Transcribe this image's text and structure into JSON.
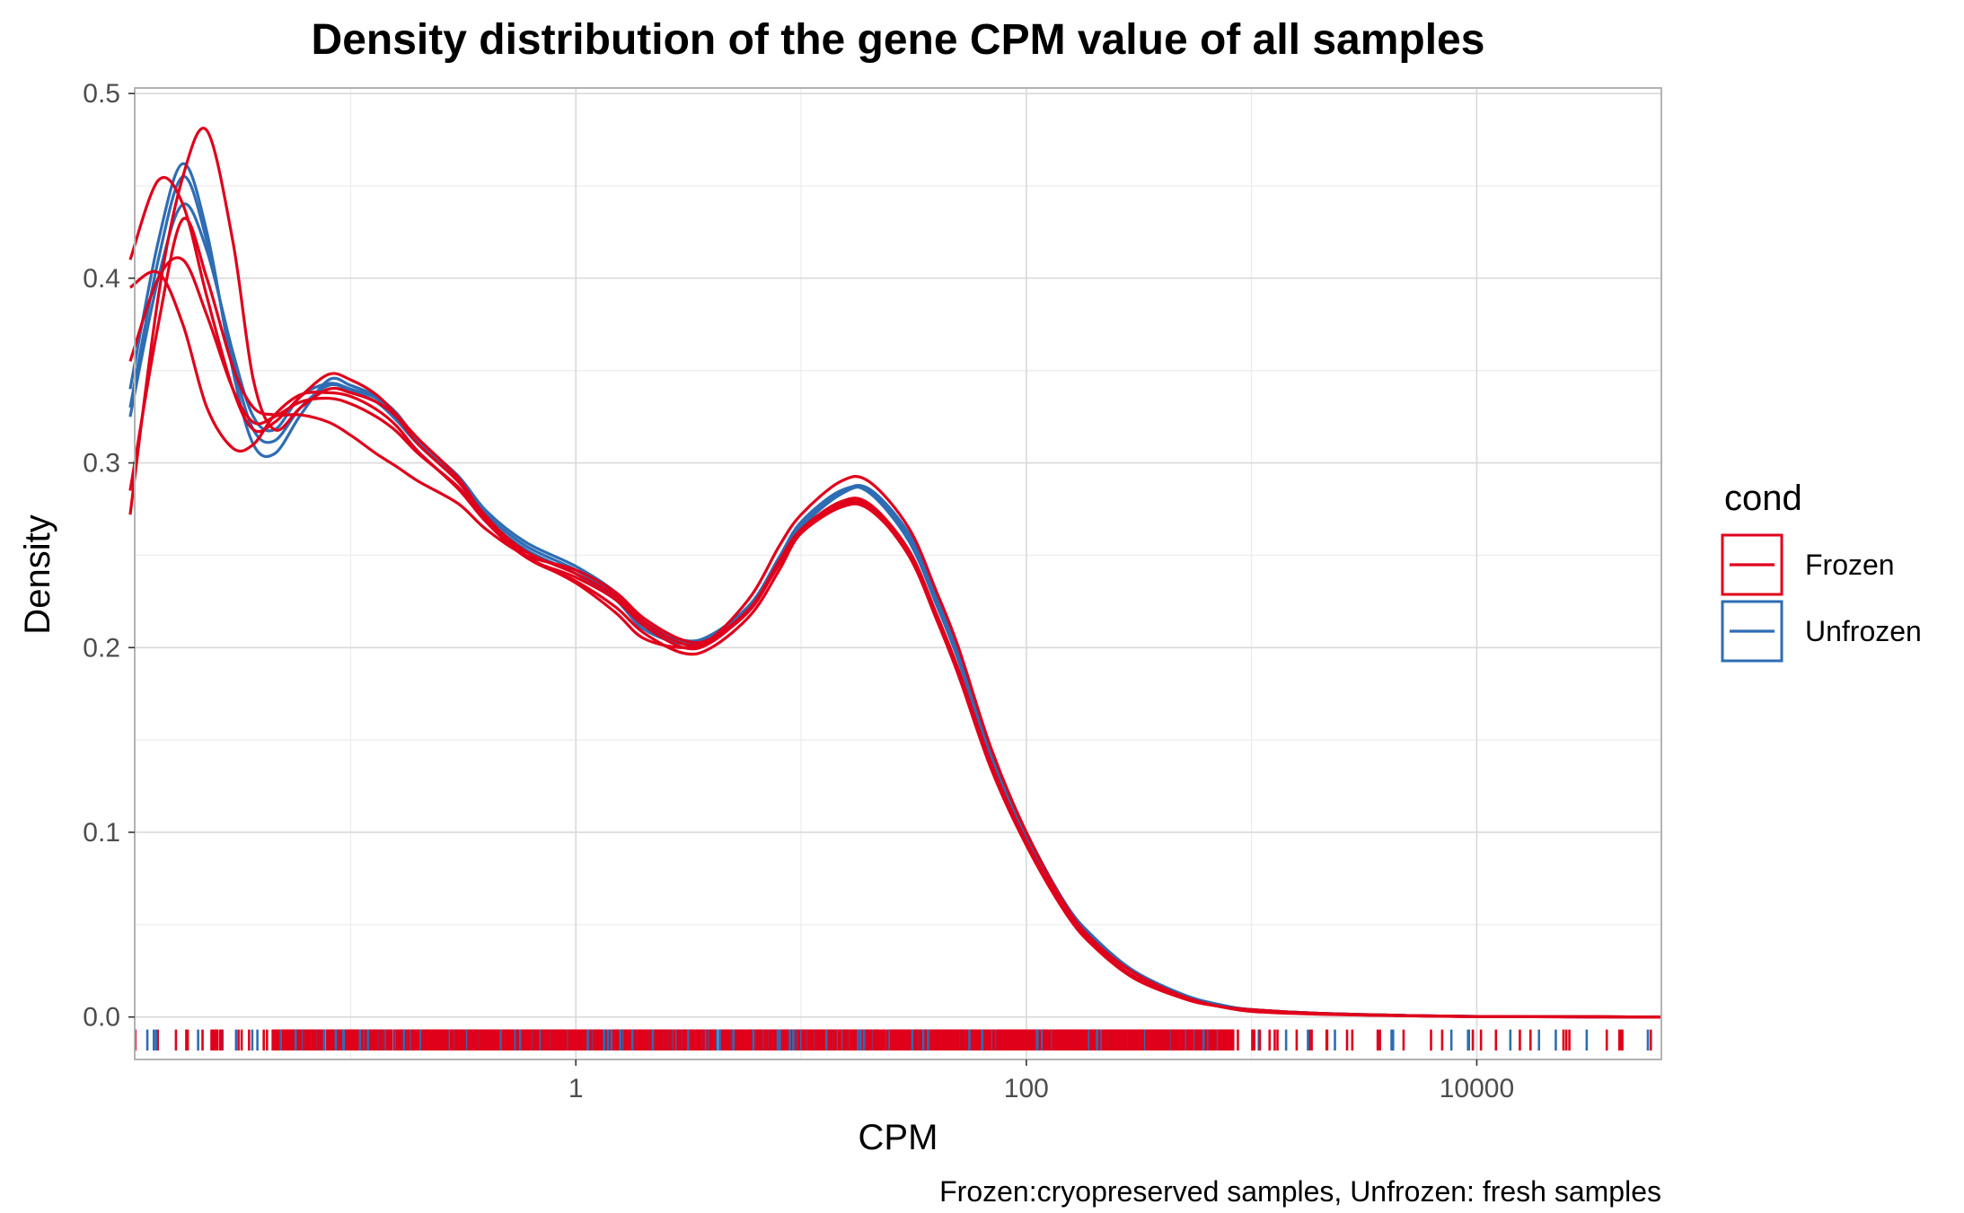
{
  "chart_data": {
    "type": "line",
    "title": "Density distribution of the gene CPM value of all samples",
    "xlabel": "CPM",
    "ylabel": "Density",
    "caption": "Frozen:cryopreserved samples, Unfrozen: fresh samples",
    "x_scale": "log10",
    "xlim": [
      0.011,
      66000
    ],
    "ylim": [
      -0.023,
      0.503
    ],
    "x_ticks": [
      {
        "value": 1,
        "label": "1"
      },
      {
        "value": 100,
        "label": "100"
      },
      {
        "value": 10000,
        "label": "10000"
      }
    ],
    "y_ticks": [
      {
        "value": 0.0,
        "label": "0.0"
      },
      {
        "value": 0.1,
        "label": "0.1"
      },
      {
        "value": 0.2,
        "label": "0.2"
      },
      {
        "value": 0.3,
        "label": "0.3"
      },
      {
        "value": 0.4,
        "label": "0.4"
      },
      {
        "value": 0.5,
        "label": "0.5"
      }
    ],
    "grid": true,
    "legend": {
      "title": "cond",
      "position": "right",
      "entries": [
        {
          "label": "Frozen",
          "color": "#e0001b"
        },
        {
          "label": "Unfrozen",
          "color": "#2e6db4"
        }
      ]
    },
    "series": [
      {
        "group": "Unfrozen",
        "color": "#2e6db4",
        "x": [
          0.0105,
          0.014,
          0.018,
          0.023,
          0.03,
          0.037,
          0.046,
          0.06,
          0.08,
          0.1,
          0.13,
          0.16,
          0.2,
          0.3,
          0.4,
          0.6,
          1,
          1.5,
          2,
          3,
          4,
          6,
          8,
          10,
          15,
          20,
          30,
          40,
          50,
          70,
          100,
          150,
          200,
          300,
          500,
          700,
          1000,
          2000,
          5000,
          10000,
          30000,
          66000
        ],
        "y": [
          0.325,
          0.4,
          0.44,
          0.415,
          0.36,
          0.325,
          0.318,
          0.336,
          0.343,
          0.34,
          0.335,
          0.325,
          0.31,
          0.29,
          0.27,
          0.253,
          0.24,
          0.226,
          0.21,
          0.202,
          0.205,
          0.222,
          0.246,
          0.265,
          0.283,
          0.285,
          0.26,
          0.225,
          0.195,
          0.142,
          0.098,
          0.06,
          0.042,
          0.024,
          0.012,
          0.007,
          0.004,
          0.002,
          0.0008,
          0.0003,
          0.0001,
          0
        ]
      },
      {
        "group": "Unfrozen",
        "color": "#2e6db4",
        "x": [
          0.0105,
          0.014,
          0.018,
          0.023,
          0.03,
          0.037,
          0.046,
          0.06,
          0.08,
          0.1,
          0.13,
          0.16,
          0.2,
          0.3,
          0.4,
          0.6,
          1,
          1.5,
          2,
          3,
          4,
          6,
          8,
          10,
          15,
          20,
          30,
          40,
          50,
          70,
          100,
          150,
          200,
          300,
          500,
          700,
          1000,
          2000,
          5000,
          10000,
          30000,
          66000
        ],
        "y": [
          0.33,
          0.41,
          0.455,
          0.42,
          0.355,
          0.318,
          0.312,
          0.33,
          0.342,
          0.339,
          0.333,
          0.323,
          0.31,
          0.291,
          0.272,
          0.255,
          0.242,
          0.228,
          0.212,
          0.203,
          0.206,
          0.223,
          0.248,
          0.266,
          0.284,
          0.286,
          0.262,
          0.228,
          0.197,
          0.144,
          0.1,
          0.061,
          0.043,
          0.025,
          0.012,
          0.007,
          0.004,
          0.002,
          0.0008,
          0.0003,
          0.0001,
          0
        ]
      },
      {
        "group": "Unfrozen",
        "color": "#2e6db4",
        "x": [
          0.0105,
          0.014,
          0.018,
          0.023,
          0.03,
          0.037,
          0.046,
          0.06,
          0.08,
          0.1,
          0.13,
          0.16,
          0.2,
          0.3,
          0.4,
          0.6,
          1,
          1.5,
          2,
          3,
          4,
          6,
          8,
          10,
          15,
          20,
          30,
          40,
          50,
          70,
          100,
          150,
          200,
          300,
          500,
          700,
          1000,
          2000,
          5000,
          10000,
          30000,
          66000
        ],
        "y": [
          0.34,
          0.42,
          0.462,
          0.425,
          0.35,
          0.31,
          0.305,
          0.326,
          0.345,
          0.342,
          0.336,
          0.327,
          0.312,
          0.293,
          0.274,
          0.257,
          0.244,
          0.23,
          0.214,
          0.204,
          0.207,
          0.224,
          0.249,
          0.268,
          0.285,
          0.284,
          0.258,
          0.223,
          0.193,
          0.14,
          0.097,
          0.059,
          0.041,
          0.024,
          0.011,
          0.006,
          0.004,
          0.002,
          0.0008,
          0.0003,
          0.0001,
          0
        ]
      },
      {
        "group": "Frozen",
        "color": "#e0001b",
        "x": [
          0.0105,
          0.014,
          0.018,
          0.023,
          0.03,
          0.037,
          0.046,
          0.06,
          0.08,
          0.1,
          0.13,
          0.16,
          0.2,
          0.3,
          0.4,
          0.6,
          1,
          1.5,
          2,
          3,
          4,
          6,
          8,
          10,
          15,
          20,
          30,
          40,
          50,
          70,
          100,
          150,
          200,
          300,
          500,
          700,
          1000,
          2000,
          5000,
          10000,
          30000,
          66000
        ],
        "y": [
          0.272,
          0.39,
          0.455,
          0.48,
          0.42,
          0.345,
          0.318,
          0.33,
          0.34,
          0.338,
          0.333,
          0.325,
          0.31,
          0.29,
          0.271,
          0.25,
          0.235,
          0.219,
          0.205,
          0.2,
          0.205,
          0.228,
          0.255,
          0.272,
          0.29,
          0.29,
          0.265,
          0.23,
          0.2,
          0.145,
          0.1,
          0.06,
          0.041,
          0.024,
          0.011,
          0.006,
          0.004,
          0.002,
          0.0008,
          0.0003,
          0.0001,
          0
        ]
      },
      {
        "group": "Frozen",
        "color": "#e0001b",
        "x": [
          0.0105,
          0.014,
          0.018,
          0.023,
          0.03,
          0.037,
          0.046,
          0.06,
          0.08,
          0.1,
          0.13,
          0.16,
          0.2,
          0.3,
          0.4,
          0.6,
          1,
          1.5,
          2,
          3,
          4,
          6,
          8,
          10,
          15,
          20,
          30,
          40,
          50,
          70,
          100,
          150,
          200,
          300,
          500,
          700,
          1000,
          2000,
          5000,
          10000,
          30000,
          66000
        ],
        "y": [
          0.41,
          0.453,
          0.44,
          0.39,
          0.34,
          0.318,
          0.322,
          0.336,
          0.348,
          0.345,
          0.337,
          0.326,
          0.313,
          0.292,
          0.27,
          0.249,
          0.236,
          0.222,
          0.208,
          0.197,
          0.2,
          0.218,
          0.242,
          0.262,
          0.277,
          0.276,
          0.25,
          0.215,
          0.185,
          0.134,
          0.093,
          0.056,
          0.038,
          0.021,
          0.01,
          0.006,
          0.003,
          0.0015,
          0.0006,
          0.0002,
          0.0001,
          0
        ]
      },
      {
        "group": "Frozen",
        "color": "#e0001b",
        "x": [
          0.0105,
          0.014,
          0.018,
          0.023,
          0.03,
          0.037,
          0.046,
          0.06,
          0.08,
          0.1,
          0.13,
          0.16,
          0.2,
          0.3,
          0.4,
          0.6,
          1,
          1.5,
          2,
          3,
          4,
          6,
          8,
          10,
          15,
          20,
          30,
          40,
          50,
          70,
          100,
          150,
          200,
          300,
          500,
          700,
          1000,
          2000,
          5000,
          10000,
          30000,
          66000
        ],
        "y": [
          0.395,
          0.403,
          0.375,
          0.33,
          0.308,
          0.31,
          0.326,
          0.337,
          0.338,
          0.336,
          0.329,
          0.32,
          0.306,
          0.286,
          0.268,
          0.249,
          0.238,
          0.226,
          0.212,
          0.2,
          0.203,
          0.222,
          0.247,
          0.264,
          0.279,
          0.278,
          0.253,
          0.218,
          0.188,
          0.137,
          0.095,
          0.058,
          0.039,
          0.022,
          0.011,
          0.006,
          0.0035,
          0.0017,
          0.0007,
          0.0002,
          0.0001,
          0
        ]
      },
      {
        "group": "Frozen",
        "color": "#e0001b",
        "x": [
          0.0105,
          0.014,
          0.018,
          0.023,
          0.03,
          0.037,
          0.046,
          0.06,
          0.08,
          0.1,
          0.13,
          0.16,
          0.2,
          0.3,
          0.4,
          0.6,
          1,
          1.5,
          2,
          3,
          4,
          6,
          8,
          10,
          15,
          20,
          30,
          40,
          50,
          70,
          100,
          150,
          200,
          300,
          500,
          700,
          1000,
          2000,
          5000,
          10000,
          30000,
          66000
        ],
        "y": [
          0.285,
          0.375,
          0.432,
          0.4,
          0.352,
          0.33,
          0.326,
          0.326,
          0.322,
          0.315,
          0.305,
          0.298,
          0.29,
          0.278,
          0.264,
          0.25,
          0.242,
          0.23,
          0.216,
          0.204,
          0.205,
          0.222,
          0.245,
          0.262,
          0.276,
          0.275,
          0.251,
          0.216,
          0.186,
          0.135,
          0.094,
          0.057,
          0.039,
          0.022,
          0.01,
          0.006,
          0.0035,
          0.0017,
          0.0007,
          0.0002,
          0.0001,
          0
        ]
      },
      {
        "group": "Frozen",
        "color": "#e0001b",
        "x": [
          0.0105,
          0.014,
          0.018,
          0.023,
          0.03,
          0.037,
          0.046,
          0.06,
          0.08,
          0.1,
          0.13,
          0.16,
          0.2,
          0.3,
          0.4,
          0.6,
          1,
          1.5,
          2,
          3,
          4,
          6,
          8,
          10,
          15,
          20,
          30,
          40,
          50,
          70,
          100,
          150,
          200,
          300,
          500,
          700,
          1000,
          2000,
          5000,
          10000,
          30000,
          66000
        ],
        "y": [
          0.355,
          0.4,
          0.41,
          0.38,
          0.34,
          0.322,
          0.325,
          0.333,
          0.335,
          0.332,
          0.325,
          0.317,
          0.305,
          0.287,
          0.27,
          0.252,
          0.24,
          0.228,
          0.214,
          0.202,
          0.204,
          0.221,
          0.246,
          0.263,
          0.278,
          0.277,
          0.252,
          0.217,
          0.187,
          0.136,
          0.094,
          0.057,
          0.039,
          0.022,
          0.01,
          0.006,
          0.0035,
          0.0017,
          0.0007,
          0.0002,
          0.0001,
          0
        ]
      }
    ]
  }
}
